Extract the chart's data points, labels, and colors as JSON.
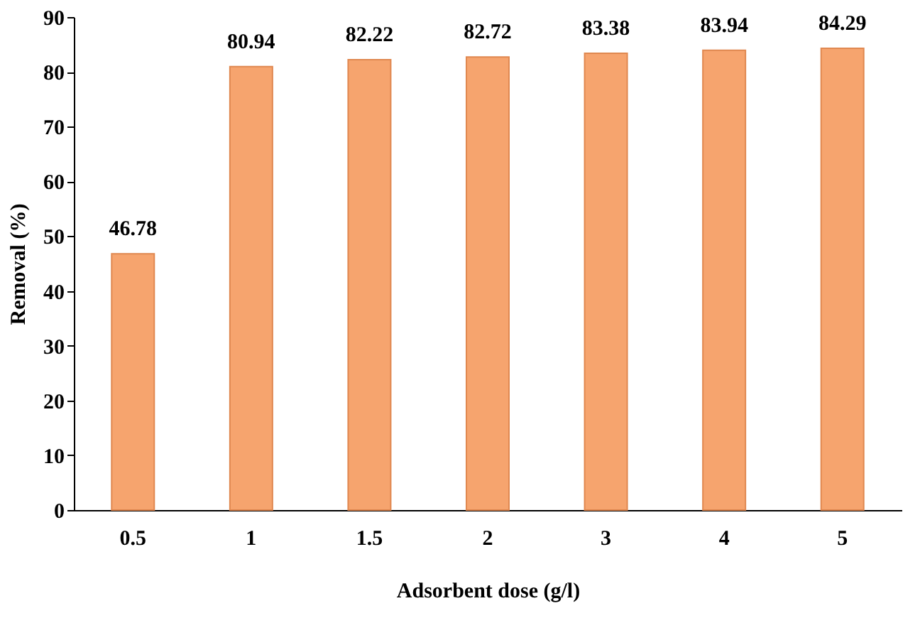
{
  "chart_data": {
    "type": "bar",
    "xlabel": "Adsorbent dose (g/l)",
    "ylabel": "Removal (%)",
    "categories": [
      "0.5",
      "1",
      "1.5",
      "2",
      "3",
      "4",
      "5"
    ],
    "values": [
      46.78,
      80.94,
      82.22,
      82.72,
      83.38,
      83.94,
      84.29
    ],
    "color": "#f6a46e",
    "ylim": [
      0,
      90
    ],
    "yticks": [
      0,
      10,
      20,
      30,
      40,
      50,
      60,
      70,
      80,
      90
    ],
    "grid": false,
    "data_labels": true
  }
}
